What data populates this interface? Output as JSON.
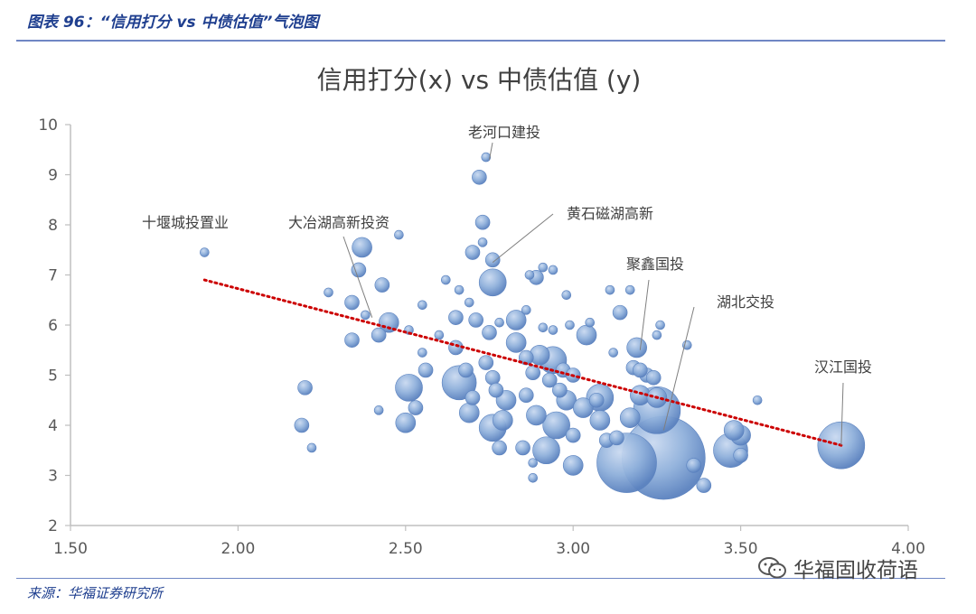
{
  "header": {
    "caption": "图表 96：“信用打分 vs 中债估值”气泡图"
  },
  "footer": {
    "source": "来源：华福证券研究所",
    "watermark": "华福固收荷语",
    "watermark_icon": "wechat-icon"
  },
  "colors": {
    "bubble_center": "#c9d9f0",
    "bubble_mid": "#8fb0db",
    "bubble_edge": "#5b82bf",
    "trend": "#cc0000",
    "axis": "#bfbfbf",
    "text": "#595959",
    "header": "#1f3f8f"
  },
  "chart_data": {
    "type": "scatter",
    "subtype": "bubble",
    "title": "信用打分(x) vs 中债估值 (y)",
    "xlabel": "",
    "ylabel": "",
    "xlim": [
      1.5,
      4.0
    ],
    "ylim": [
      2,
      10
    ],
    "x_ticks": [
      "1.50",
      "2.00",
      "2.50",
      "3.00",
      "3.50",
      "4.00"
    ],
    "y_ticks": [
      "2",
      "3",
      "4",
      "5",
      "6",
      "7",
      "8",
      "9",
      "10"
    ],
    "trendline": {
      "style": "dotted",
      "from": [
        1.9,
        6.9
      ],
      "to": [
        3.8,
        3.6
      ]
    },
    "annotations": [
      {
        "label": "老河口建投",
        "point": [
          2.75,
          9.3
        ]
      },
      {
        "label": "十堰城投置业",
        "point": [
          1.9,
          7.5
        ]
      },
      {
        "label": "大冶湖高新投资",
        "point": [
          2.4,
          6.15
        ]
      },
      {
        "label": "黄石磁湖高新",
        "point": [
          2.76,
          7.25
        ]
      },
      {
        "label": "聚鑫国投",
        "point": [
          3.2,
          5.5
        ]
      },
      {
        "label": "湖北交投",
        "point": [
          3.27,
          3.9
        ]
      },
      {
        "label": "汉江国投",
        "point": [
          3.8,
          3.6
        ]
      }
    ],
    "bubbles": [
      [
        1.9,
        7.45,
        1
      ],
      [
        2.74,
        9.35,
        1
      ],
      [
        2.72,
        8.95,
        2
      ],
      [
        2.73,
        8.05,
        2
      ],
      [
        2.73,
        7.65,
        1
      ],
      [
        2.76,
        7.3,
        2
      ],
      [
        2.76,
        6.85,
        4
      ],
      [
        2.87,
        7.0,
        1
      ],
      [
        2.89,
        6.95,
        2
      ],
      [
        2.91,
        7.15,
        1
      ],
      [
        2.94,
        7.1,
        1
      ],
      [
        2.98,
        6.6,
        1
      ],
      [
        2.7,
        7.45,
        2
      ],
      [
        2.48,
        7.8,
        1
      ],
      [
        2.37,
        7.55,
        3
      ],
      [
        2.36,
        7.1,
        2
      ],
      [
        2.43,
        6.8,
        2
      ],
      [
        2.34,
        6.45,
        2
      ],
      [
        2.27,
        6.65,
        1
      ],
      [
        2.45,
        6.05,
        3
      ],
      [
        2.42,
        5.8,
        2
      ],
      [
        2.34,
        5.7,
        2
      ],
      [
        2.38,
        6.2,
        1
      ],
      [
        2.2,
        4.75,
        2
      ],
      [
        2.19,
        4.0,
        2
      ],
      [
        2.22,
        3.55,
        1
      ],
      [
        2.42,
        4.3,
        1
      ],
      [
        2.51,
        5.9,
        1
      ],
      [
        2.55,
        6.4,
        1
      ],
      [
        2.6,
        5.8,
        1
      ],
      [
        2.62,
        6.9,
        1
      ],
      [
        2.66,
        6.7,
        1
      ],
      [
        2.65,
        6.15,
        2
      ],
      [
        2.69,
        6.45,
        1
      ],
      [
        2.71,
        6.1,
        2
      ],
      [
        2.75,
        5.85,
        2
      ],
      [
        2.78,
        6.05,
        1
      ],
      [
        2.83,
        6.1,
        3
      ],
      [
        2.86,
        6.3,
        1
      ],
      [
        2.91,
        5.95,
        1
      ],
      [
        2.94,
        5.9,
        1
      ],
      [
        2.99,
        6.0,
        1
      ],
      [
        3.04,
        5.8,
        3
      ],
      [
        3.05,
        6.05,
        1
      ],
      [
        3.11,
        6.7,
        1
      ],
      [
        3.17,
        6.7,
        1
      ],
      [
        3.14,
        6.25,
        2
      ],
      [
        3.26,
        6.0,
        1
      ],
      [
        3.25,
        5.8,
        1
      ],
      [
        3.34,
        5.6,
        1
      ],
      [
        3.12,
        5.45,
        1
      ],
      [
        3.19,
        5.55,
        3
      ],
      [
        3.18,
        5.15,
        2
      ],
      [
        3.22,
        5.0,
        2
      ],
      [
        3.2,
        4.6,
        3
      ],
      [
        2.55,
        5.45,
        1
      ],
      [
        2.56,
        5.1,
        2
      ],
      [
        2.51,
        4.75,
        4
      ],
      [
        2.53,
        4.35,
        2
      ],
      [
        2.5,
        4.05,
        3
      ],
      [
        2.65,
        5.55,
        2
      ],
      [
        2.68,
        5.1,
        2
      ],
      [
        2.66,
        4.85,
        5
      ],
      [
        2.7,
        4.55,
        2
      ],
      [
        2.69,
        4.25,
        3
      ],
      [
        2.74,
        5.25,
        2
      ],
      [
        2.76,
        4.95,
        2
      ],
      [
        2.77,
        4.7,
        2
      ],
      [
        2.8,
        4.5,
        3
      ],
      [
        2.79,
        4.1,
        3
      ],
      [
        2.76,
        3.95,
        4
      ],
      [
        2.78,
        3.55,
        2
      ],
      [
        2.83,
        5.65,
        3
      ],
      [
        2.86,
        5.35,
        2
      ],
      [
        2.88,
        5.05,
        2
      ],
      [
        2.86,
        4.6,
        2
      ],
      [
        2.89,
        4.2,
        3
      ],
      [
        2.85,
        3.55,
        2
      ],
      [
        2.92,
        3.5,
        4
      ],
      [
        2.88,
        3.25,
        1
      ],
      [
        2.9,
        5.4,
        3
      ],
      [
        2.94,
        5.3,
        4
      ],
      [
        2.97,
        5.1,
        2
      ],
      [
        2.93,
        4.9,
        2
      ],
      [
        2.96,
        4.7,
        2
      ],
      [
        2.98,
        4.5,
        3
      ],
      [
        2.95,
        4.0,
        4
      ],
      [
        3.0,
        3.8,
        2
      ],
      [
        3.0,
        3.2,
        3
      ],
      [
        3.0,
        5.0,
        2
      ],
      [
        3.03,
        4.35,
        3
      ],
      [
        3.07,
        4.5,
        2
      ],
      [
        3.08,
        4.1,
        3
      ],
      [
        3.08,
        4.55,
        4
      ],
      [
        3.1,
        3.7,
        2
      ],
      [
        3.13,
        3.75,
        2
      ],
      [
        3.17,
        4.15,
        3
      ],
      [
        3.16,
        3.25,
        8
      ],
      [
        3.25,
        4.3,
        7
      ],
      [
        3.27,
        3.35,
        10
      ],
      [
        3.24,
        4.95,
        2
      ],
      [
        3.2,
        5.1,
        2
      ],
      [
        3.25,
        4.55,
        3
      ],
      [
        3.36,
        3.2,
        2
      ],
      [
        3.39,
        2.8,
        2
      ],
      [
        3.47,
        3.5,
        5
      ],
      [
        3.5,
        3.4,
        2
      ],
      [
        3.5,
        3.8,
        3
      ],
      [
        3.48,
        3.9,
        3
      ],
      [
        3.55,
        4.5,
        1
      ],
      [
        3.8,
        3.6,
        7
      ],
      [
        2.88,
        2.95,
        1
      ]
    ]
  }
}
